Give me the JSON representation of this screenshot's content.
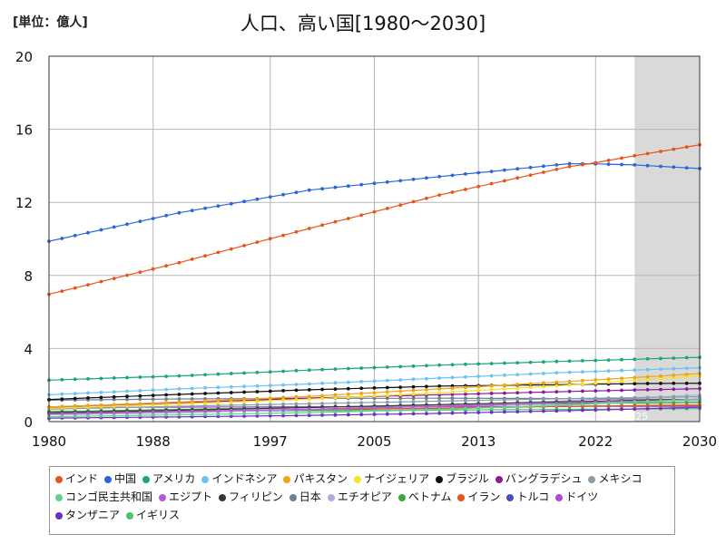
{
  "header": {
    "unit": "[単位：億人]",
    "title": "人口、高い国[1980～2030]"
  },
  "chart_data": {
    "type": "line",
    "title": "人口、高い国[1980～2030]",
    "ylabel": "[単位：億人]",
    "xlim": [
      1980,
      2030
    ],
    "ylim": [
      0,
      20
    ],
    "x_ticks": [
      "1980",
      "1988",
      "1997",
      "2005",
      "2013",
      "2022",
      "2030"
    ],
    "x_tick_values": [
      1980,
      1988,
      1997,
      2005,
      2013,
      2022,
      2030
    ],
    "y_ticks": [
      "0",
      "4",
      "8",
      "12",
      "16",
      "20"
    ],
    "y_tick_values": [
      0,
      4,
      8,
      12,
      16,
      20
    ],
    "grid": true,
    "legend_position": "bottom",
    "forecast_start": 2025,
    "forecast_label": "2025",
    "series": [
      {
        "name": "インド",
        "color": "#e8541c",
        "points": [
          [
            1980,
            6.97
          ],
          [
            1990,
            8.7
          ],
          [
            2000,
            10.57
          ],
          [
            2010,
            12.4
          ],
          [
            2020,
            13.96
          ],
          [
            2022,
            14.17
          ],
          [
            2025,
            14.55
          ],
          [
            2030,
            15.15
          ]
        ]
      },
      {
        "name": "中国",
        "color": "#2a66d8",
        "points": [
          [
            1980,
            9.87
          ],
          [
            1990,
            11.43
          ],
          [
            2000,
            12.67
          ],
          [
            2010,
            13.41
          ],
          [
            2020,
            14.12
          ],
          [
            2022,
            14.11
          ],
          [
            2025,
            14.05
          ],
          [
            2030,
            13.85
          ]
        ]
      },
      {
        "name": "アメリカ",
        "color": "#19a57f",
        "points": [
          [
            1980,
            2.27
          ],
          [
            1990,
            2.5
          ],
          [
            2000,
            2.82
          ],
          [
            2010,
            3.09
          ],
          [
            2020,
            3.31
          ],
          [
            2025,
            3.41
          ],
          [
            2030,
            3.52
          ]
        ]
      },
      {
        "name": "インドネシア",
        "color": "#6cc3f2",
        "points": [
          [
            1980,
            1.47
          ],
          [
            1990,
            1.79
          ],
          [
            2000,
            2.06
          ],
          [
            2010,
            2.38
          ],
          [
            2020,
            2.7
          ],
          [
            2025,
            2.82
          ],
          [
            2030,
            2.95
          ]
        ]
      },
      {
        "name": "パキスタン",
        "color": "#f0a418",
        "points": [
          [
            1980,
            0.8
          ],
          [
            1990,
            1.07
          ],
          [
            2000,
            1.38
          ],
          [
            2010,
            1.79
          ],
          [
            2020,
            2.2
          ],
          [
            2025,
            2.41
          ],
          [
            2030,
            2.63
          ]
        ]
      },
      {
        "name": "ナイジェリア",
        "color": "#f5e22a",
        "points": [
          [
            1980,
            0.73
          ],
          [
            1990,
            0.95
          ],
          [
            2000,
            1.23
          ],
          [
            2010,
            1.58
          ],
          [
            2020,
            2.0
          ],
          [
            2025,
            2.25
          ],
          [
            2030,
            2.5
          ]
        ]
      },
      {
        "name": "ブラジル",
        "color": "#111111",
        "points": [
          [
            1980,
            1.21
          ],
          [
            1990,
            1.49
          ],
          [
            2000,
            1.74
          ],
          [
            2010,
            1.94
          ],
          [
            2020,
            2.03
          ],
          [
            2025,
            2.08
          ],
          [
            2030,
            2.1
          ]
        ]
      },
      {
        "name": "バングラデシュ",
        "color": "#8e1a9a",
        "points": [
          [
            1980,
            0.8
          ],
          [
            1990,
            1.03
          ],
          [
            2000,
            1.29
          ],
          [
            2010,
            1.47
          ],
          [
            2020,
            1.65
          ],
          [
            2025,
            1.73
          ],
          [
            2030,
            1.8
          ]
        ]
      },
      {
        "name": "メキシコ",
        "color": "#8c9ba6",
        "points": [
          [
            1980,
            0.68
          ],
          [
            1990,
            0.84
          ],
          [
            2000,
            0.98
          ],
          [
            2010,
            1.12
          ],
          [
            2020,
            1.26
          ],
          [
            2025,
            1.31
          ],
          [
            2030,
            1.36
          ]
        ]
      },
      {
        "name": "コンゴ民主共和国",
        "color": "#5fd18d",
        "points": [
          [
            1980,
            0.27
          ],
          [
            1990,
            0.37
          ],
          [
            2000,
            0.49
          ],
          [
            2010,
            0.67
          ],
          [
            2020,
            0.91
          ],
          [
            2025,
            1.07
          ],
          [
            2030,
            1.24
          ]
        ]
      },
      {
        "name": "エジプト",
        "color": "#b45ad6",
        "points": [
          [
            1980,
            0.43
          ],
          [
            1990,
            0.56
          ],
          [
            2000,
            0.68
          ],
          [
            2010,
            0.83
          ],
          [
            2020,
            1.02
          ],
          [
            2025,
            1.12
          ],
          [
            2030,
            1.2
          ]
        ]
      },
      {
        "name": "フィリピン",
        "color": "#2f3a36",
        "points": [
          [
            1980,
            0.48
          ],
          [
            1990,
            0.62
          ],
          [
            2000,
            0.77
          ],
          [
            2010,
            0.93
          ],
          [
            2020,
            1.09
          ],
          [
            2025,
            1.16
          ],
          [
            2030,
            1.22
          ]
        ]
      },
      {
        "name": "日本",
        "color": "#6b7f95",
        "points": [
          [
            1980,
            1.17
          ],
          [
            1990,
            1.24
          ],
          [
            2000,
            1.27
          ],
          [
            2010,
            1.28
          ],
          [
            2020,
            1.26
          ],
          [
            2025,
            1.23
          ],
          [
            2030,
            1.2
          ]
        ]
      },
      {
        "name": "エチオピア",
        "color": "#b9a6e3",
        "points": [
          [
            1980,
            0.37
          ],
          [
            1990,
            0.48
          ],
          [
            2000,
            0.66
          ],
          [
            2010,
            0.87
          ],
          [
            2020,
            1.15
          ],
          [
            2025,
            1.29
          ],
          [
            2030,
            1.45
          ]
        ]
      },
      {
        "name": "ベトナム",
        "color": "#3fa63a",
        "points": [
          [
            1980,
            0.54
          ],
          [
            1990,
            0.67
          ],
          [
            2000,
            0.78
          ],
          [
            2010,
            0.87
          ],
          [
            2020,
            0.98
          ],
          [
            2025,
            1.02
          ],
          [
            2030,
            1.06
          ]
        ]
      },
      {
        "name": "イラン",
        "color": "#e8541c",
        "points": [
          [
            1980,
            0.39
          ],
          [
            1990,
            0.56
          ],
          [
            2000,
            0.65
          ],
          [
            2010,
            0.74
          ],
          [
            2020,
            0.84
          ],
          [
            2025,
            0.87
          ],
          [
            2030,
            0.9
          ]
        ]
      },
      {
        "name": "トルコ",
        "color": "#4750b8",
        "points": [
          [
            1980,
            0.44
          ],
          [
            1990,
            0.55
          ],
          [
            2000,
            0.64
          ],
          [
            2010,
            0.73
          ],
          [
            2020,
            0.84
          ],
          [
            2025,
            0.86
          ],
          [
            2030,
            0.88
          ]
        ]
      },
      {
        "name": "ドイツ",
        "color": "#b048e0",
        "points": [
          [
            1980,
            0.78
          ],
          [
            1990,
            0.79
          ],
          [
            2000,
            0.82
          ],
          [
            2010,
            0.82
          ],
          [
            2020,
            0.83
          ],
          [
            2025,
            0.84
          ],
          [
            2030,
            0.83
          ]
        ]
      },
      {
        "name": "タンザニア",
        "color": "#6a2ec4",
        "points": [
          [
            1980,
            0.19
          ],
          [
            1990,
            0.26
          ],
          [
            2000,
            0.34
          ],
          [
            2010,
            0.45
          ],
          [
            2020,
            0.6
          ],
          [
            2025,
            0.69
          ],
          [
            2030,
            0.79
          ]
        ]
      },
      {
        "name": "イギリス",
        "color": "#4cc46c",
        "points": [
          [
            1980,
            0.56
          ],
          [
            1990,
            0.57
          ],
          [
            2000,
            0.59
          ],
          [
            2010,
            0.63
          ],
          [
            2020,
            0.67
          ],
          [
            2025,
            0.69
          ],
          [
            2030,
            0.71
          ]
        ]
      }
    ]
  }
}
